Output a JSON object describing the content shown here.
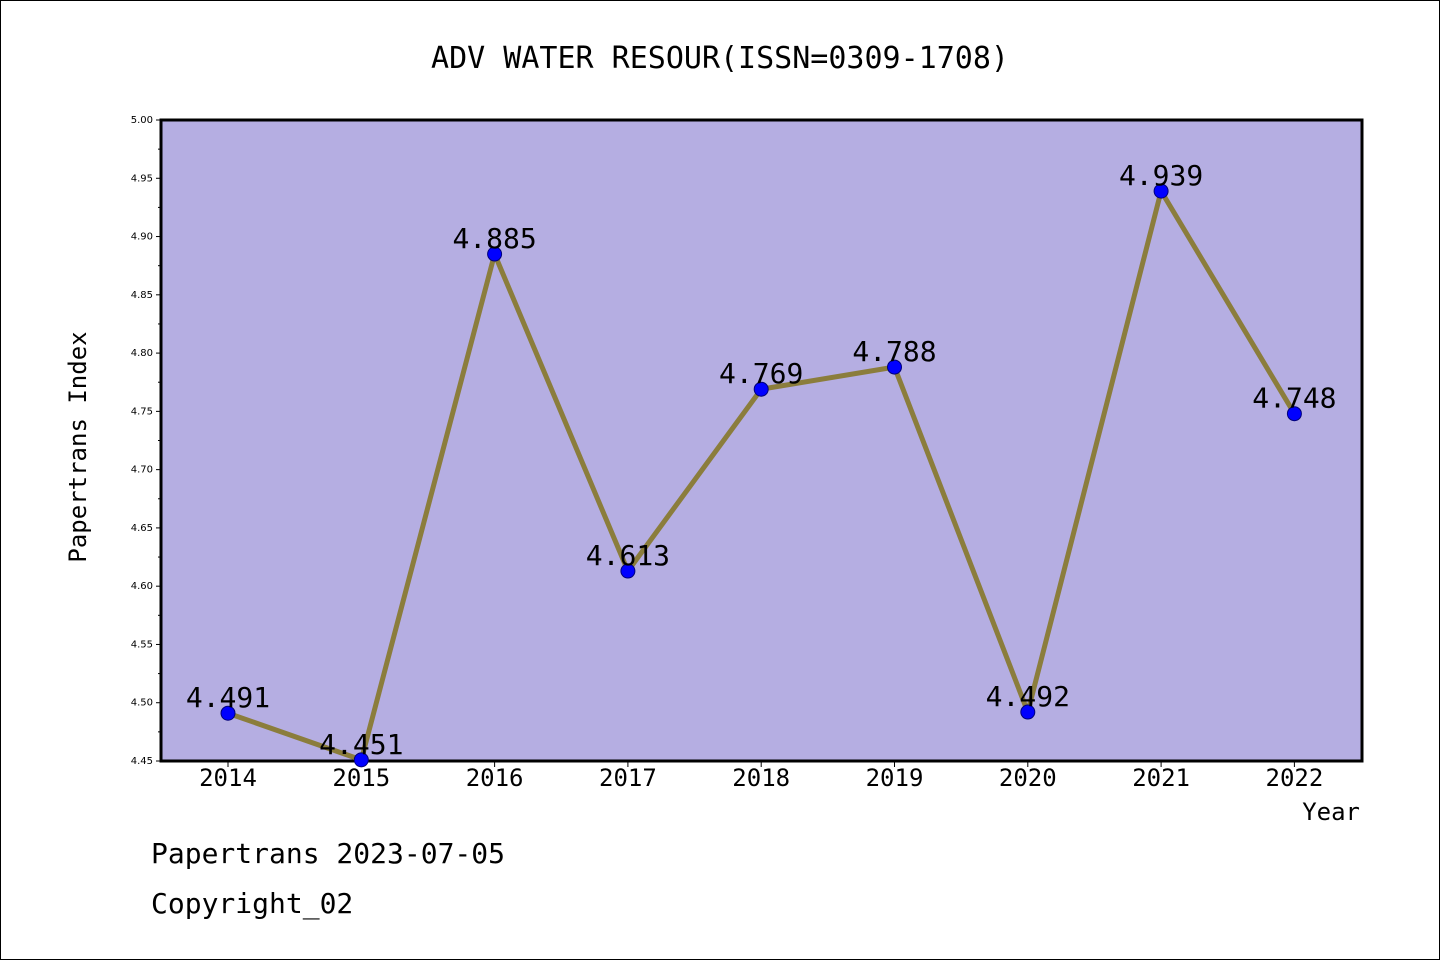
{
  "chart_data": {
    "type": "line",
    "title": "ADV WATER RESOUR(ISSN=0309-1708)",
    "xlabel": "Year",
    "ylabel": "Papertrans Index",
    "categories": [
      "2014",
      "2015",
      "2016",
      "2017",
      "2018",
      "2019",
      "2020",
      "2021",
      "2022"
    ],
    "series": [
      {
        "values": [
          4.491,
          4.451,
          4.885,
          4.613,
          4.769,
          4.788,
          4.492,
          4.939,
          4.748
        ],
        "data_labels": [
          "4.491",
          "4.451",
          "4.885",
          "4.613",
          "4.769",
          "4.788",
          "4.492",
          "4.939",
          "4.748"
        ]
      }
    ],
    "ylim": [
      4.45,
      5.0
    ],
    "yticks": [
      "4.45",
      "4.50",
      "4.55",
      "4.60",
      "4.65",
      "4.70",
      "4.75",
      "4.80",
      "4.85",
      "4.90",
      "4.95",
      "5.00"
    ],
    "grid": false,
    "legend": "none",
    "colors": {
      "plot_background": "#b5aee2",
      "line": "#8b7d3c",
      "marker": "#0000ff",
      "marker_edge": "#00007a"
    }
  },
  "footer": {
    "line1": "Papertrans 2023-07-05",
    "line2": "Copyright_02"
  }
}
